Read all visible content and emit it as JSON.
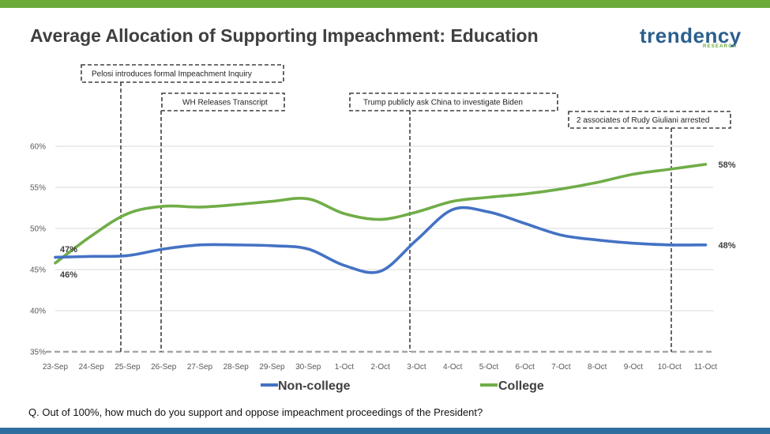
{
  "header": {
    "title": "Average Allocation of Supporting Impeachment: Education",
    "logo_main": "trendency",
    "logo_sub": "RESEARCH"
  },
  "footer": {
    "question": "Q. Out of 100%, how much do you support and oppose impeachment proceedings of the President?"
  },
  "colors": {
    "college": "#70ad47",
    "noncollege": "#4472c4",
    "top_bar": "#6bab3c",
    "bottom_bar": "#2f6f9f"
  },
  "chart_data": {
    "type": "line",
    "title": "Average Allocation of Supporting Impeachment: Education",
    "x": [
      "23-Sep",
      "24-Sep",
      "25-Sep",
      "26-Sep",
      "27-Sep",
      "28-Sep",
      "29-Sep",
      "30-Sep",
      "1-Oct",
      "2-Oct",
      "3-Oct",
      "4-Oct",
      "5-Oct",
      "6-Oct",
      "7-Oct",
      "8-Oct",
      "9-Oct",
      "10-Oct",
      "11-Oct"
    ],
    "y_ticks": [
      "35%",
      "40%",
      "45%",
      "50%",
      "55%",
      "60%"
    ],
    "ylim": [
      35,
      60
    ],
    "grid": true,
    "legend": "bottom",
    "series": [
      {
        "name": "Non-college",
        "values": [
          46.5,
          46.6,
          46.7,
          47.5,
          48.0,
          48.0,
          47.9,
          47.5,
          45.5,
          44.8,
          48.6,
          52.3,
          52.0,
          50.6,
          49.2,
          48.6,
          48.2,
          48.0,
          48.0
        ],
        "start_label": "47%",
        "end_label": "48%"
      },
      {
        "name": "College",
        "values": [
          45.8,
          49.1,
          51.8,
          52.7,
          52.6,
          52.9,
          53.3,
          53.6,
          51.8,
          51.1,
          52.0,
          53.3,
          53.8,
          54.2,
          54.8,
          55.6,
          56.6,
          57.2,
          57.8
        ],
        "start_label": "46%",
        "end_label": "58%"
      }
    ],
    "annotations": [
      {
        "text": "Pelosi introduces formal Impeachment Inquiry",
        "x": "25-Sep"
      },
      {
        "text": "WH Releases Transcript",
        "x": "26-Sep"
      },
      {
        "text": "Trump publicly ask China to investigate Biden",
        "x": "3-Oct"
      },
      {
        "text": "2 associates of Rudy Giuliani  arrested",
        "x": "10-Oct"
      }
    ]
  }
}
